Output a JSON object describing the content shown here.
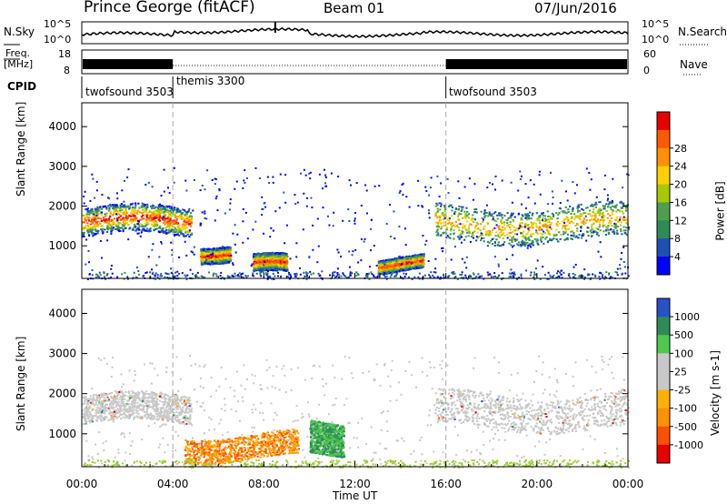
{
  "header": {
    "station": "Prince George (fitACF)",
    "beam": "Beam 01",
    "date": "07/Jun/2016"
  },
  "top_panels": {
    "nsky": {
      "label": "N.Sky",
      "ticks": [
        "10^5",
        "10^0"
      ]
    },
    "nsearch": {
      "label": "N.Search",
      "ticks": [
        "10^5",
        "10^0"
      ]
    },
    "freq": {
      "label_line1": "Freq.",
      "label_line2": "[MHz]",
      "ticks": [
        "18",
        "8"
      ]
    },
    "nave": {
      "label": "Nave",
      "ticks": [
        "60",
        "0"
      ]
    },
    "cpid": {
      "label": "CPID",
      "modes": [
        "twofsound 3503",
        "themis 3300",
        "twofsound 3503"
      ]
    }
  },
  "colors": {
    "power": [
      "#0000ff",
      "#1e50b4",
      "#2e8b57",
      "#4f9e4f",
      "#a8c800",
      "#ffd000",
      "#ff9000",
      "#ff5a00",
      "#e60000"
    ],
    "velocity": [
      "#e60000",
      "#ff5000",
      "#ff9000",
      "#ffb000",
      "#c8c8c8",
      "#c8c8c8",
      "#4ec84e",
      "#2e8b57",
      "#2850c8"
    ]
  },
  "chart_data": [
    {
      "type": "heatmap",
      "ylabel": "Slant Range [km]",
      "xlabel": "Time UT",
      "xlim": [
        "00:00",
        "24:00"
      ],
      "ylim": [
        180,
        4600
      ],
      "xticks": [
        "00:00",
        "04:00",
        "08:00",
        "12:00",
        "16:00",
        "20:00",
        "00:00"
      ],
      "yticks": [
        "1000",
        "2000",
        "3000",
        "4000"
      ],
      "colorbar": {
        "label": "Power [dB]",
        "ticks": [
          "4",
          "8",
          "12",
          "16",
          "20",
          "24",
          "28"
        ]
      },
      "bands": [
        {
          "t_start": 0.0,
          "t_end": 4.8,
          "range_start": 1250,
          "range_end": 1950,
          "level": "high"
        },
        {
          "t_start": 5.2,
          "t_end": 6.5,
          "range_start": 700,
          "range_end": 1100,
          "level": "high"
        },
        {
          "t_start": 7.5,
          "t_end": 9.0,
          "range_start": 250,
          "range_end": 700,
          "level": "high"
        },
        {
          "t_start": 13.0,
          "t_end": 15.0,
          "range_start": 350,
          "range_end": 700,
          "level": "high"
        },
        {
          "t_start": 15.5,
          "t_end": 24.0,
          "range_start": 1150,
          "range_end": 2000,
          "level": "medium"
        }
      ]
    },
    {
      "type": "heatmap",
      "ylabel": "Slant Range [km]",
      "xlabel": "Time UT",
      "xlim": [
        "00:00",
        "24:00"
      ],
      "ylim": [
        180,
        4600
      ],
      "xticks": [
        "00:00",
        "04:00",
        "08:00",
        "12:00",
        "16:00",
        "20:00",
        "00:00"
      ],
      "yticks": [
        "1000",
        "2000",
        "3000",
        "4000"
      ],
      "colorbar": {
        "label": "Velocity [m s-1]",
        "ticks": [
          "1000",
          "500",
          "100",
          "25",
          "-25",
          "-100",
          "-500",
          "-1000"
        ]
      },
      "bands": [
        {
          "t_start": 0.0,
          "t_end": 4.8,
          "range_start": 1250,
          "range_end": 1950,
          "level": "ground"
        },
        {
          "t_start": 4.5,
          "t_end": 9.5,
          "range_start": 400,
          "range_end": 1000,
          "level": "negative"
        },
        {
          "t_start": 10.0,
          "t_end": 11.5,
          "range_start": 500,
          "range_end": 1300,
          "level": "positive"
        },
        {
          "t_start": 15.5,
          "t_end": 24.0,
          "range_start": 1150,
          "range_end": 2000,
          "level": "ground"
        }
      ]
    }
  ]
}
